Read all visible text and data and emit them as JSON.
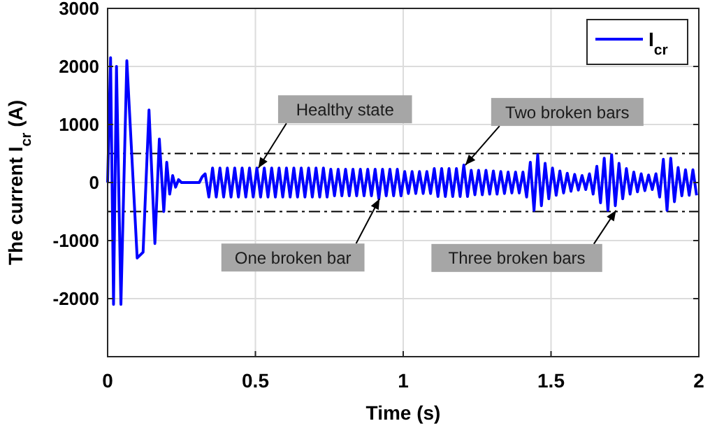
{
  "chart_data": {
    "type": "line",
    "xlabel": "Time (s)",
    "ylabel": "The current I$_{cr}$ (A)",
    "xlim": [
      0,
      2
    ],
    "xticks": [
      0,
      0.5,
      1,
      1.5,
      2
    ],
    "ylim": [
      -3000,
      3000
    ],
    "yticks": [
      -2000,
      -1000,
      0,
      1000,
      2000,
      3000
    ],
    "grid": true,
    "legend": "top right",
    "line_style": "solid",
    "series": [
      {
        "name": "I$_{cr}$",
        "color": "#0000ff",
        "x": [
          0,
          0.01,
          0.02,
          0.03,
          0.045,
          0.065,
          0.1,
          0.12,
          0.14,
          0.16,
          0.175,
          0.19,
          0.2,
          0.21,
          0.22,
          0.23,
          0.24,
          0.25,
          0.31,
          0.32,
          0.33,
          0.3425,
          0.355,
          0.3675,
          0.38,
          0.3925,
          0.405,
          0.4175,
          0.43,
          0.4425,
          0.455,
          0.4675,
          0.48,
          0.4925,
          0.505,
          0.5175,
          0.53,
          0.5425,
          0.555,
          0.5675,
          0.58,
          0.5925,
          0.605,
          0.6175,
          0.63,
          0.6425,
          0.655,
          0.6675,
          0.68,
          0.6925,
          0.705,
          0.7175,
          0.73,
          0.7425,
          0.755,
          0.7675,
          0.78,
          0.7925,
          0.805,
          0.8175,
          0.83,
          0.8425,
          0.855,
          0.8675,
          0.88,
          0.8925,
          0.905,
          0.9175,
          0.93,
          0.9425,
          0.955,
          0.9675,
          0.98,
          0.9925,
          1.005,
          1.0175,
          1.03,
          1.0425,
          1.055,
          1.0675,
          1.08,
          1.0925,
          1.105,
          1.1175,
          1.13,
          1.1425,
          1.155,
          1.1675,
          1.18,
          1.1925,
          1.205,
          1.2175,
          1.23,
          1.2425,
          1.255,
          1.2675,
          1.28,
          1.2925,
          1.305,
          1.3175,
          1.33,
          1.3425,
          1.355,
          1.3675,
          1.38,
          1.3925,
          1.405,
          1.4175,
          1.43,
          1.4425,
          1.455,
          1.4675,
          1.48,
          1.4925,
          1.505,
          1.5175,
          1.53,
          1.5425,
          1.555,
          1.5675,
          1.58,
          1.5925,
          1.605,
          1.6175,
          1.63,
          1.6425,
          1.655,
          1.6675,
          1.68,
          1.6925,
          1.705,
          1.7175,
          1.73,
          1.7425,
          1.755,
          1.7675,
          1.78,
          1.7925,
          1.805,
          1.8175,
          1.83,
          1.8425,
          1.855,
          1.8675,
          1.88,
          1.8925,
          1.905,
          1.9175,
          1.93,
          1.9425,
          1.955,
          1.9675,
          1.98,
          1.9925
        ],
        "values": [
          0,
          2150,
          -2100,
          2000,
          -2100,
          2100,
          -1300,
          -1200,
          1250,
          -1050,
          750,
          -500,
          350,
          -200,
          120,
          -80,
          50,
          0,
          0,
          100,
          150,
          -250,
          250,
          -250,
          250,
          -250,
          250,
          -250,
          250,
          -250,
          250,
          -250,
          250,
          -250,
          250,
          -250,
          250,
          -250,
          250,
          -250,
          250,
          -250,
          250,
          -250,
          250,
          -250,
          250,
          -250,
          250,
          -250,
          250,
          -250,
          250,
          -250,
          230,
          -230,
          230,
          -230,
          230,
          -230,
          230,
          -230,
          230,
          -230,
          230,
          -230,
          230,
          -280,
          230,
          -230,
          230,
          -230,
          230,
          -230,
          190,
          -190,
          190,
          -190,
          190,
          -190,
          190,
          -190,
          240,
          -240,
          240,
          -240,
          240,
          -240,
          240,
          -240,
          300,
          -240,
          210,
          -210,
          210,
          -210,
          210,
          -200,
          200,
          -200,
          190,
          -190,
          180,
          -180,
          180,
          -180,
          180,
          -250,
          350,
          -480,
          480,
          -400,
          330,
          -280,
          250,
          -220,
          200,
          -180,
          160,
          -150,
          140,
          -130,
          120,
          -120,
          150,
          -200,
          280,
          -350,
          420,
          -480,
          480,
          -400,
          330,
          -280,
          240,
          -200,
          180,
          -160,
          150,
          -140,
          130,
          -120,
          150,
          -250,
          400,
          -480,
          420,
          -330,
          260,
          -230,
          220,
          -220,
          220,
          -220
        ]
      }
    ],
    "ref_lines": [
      {
        "axis": "y",
        "value": 500,
        "color": "#000000",
        "line_style": "dashed"
      },
      {
        "axis": "y",
        "value": -500,
        "color": "#000000",
        "line_style": "dashed"
      }
    ],
    "annotations": [
      {
        "text": "Healthy state",
        "x": 0.51,
        "y": 250
      },
      {
        "text": "Two broken bars",
        "x": 1.21,
        "y": 300
      },
      {
        "text": "One broken bar",
        "x": 0.92,
        "y": -280
      },
      {
        "text": "Three broken bars",
        "x": 1.72,
        "y": -480
      }
    ]
  }
}
